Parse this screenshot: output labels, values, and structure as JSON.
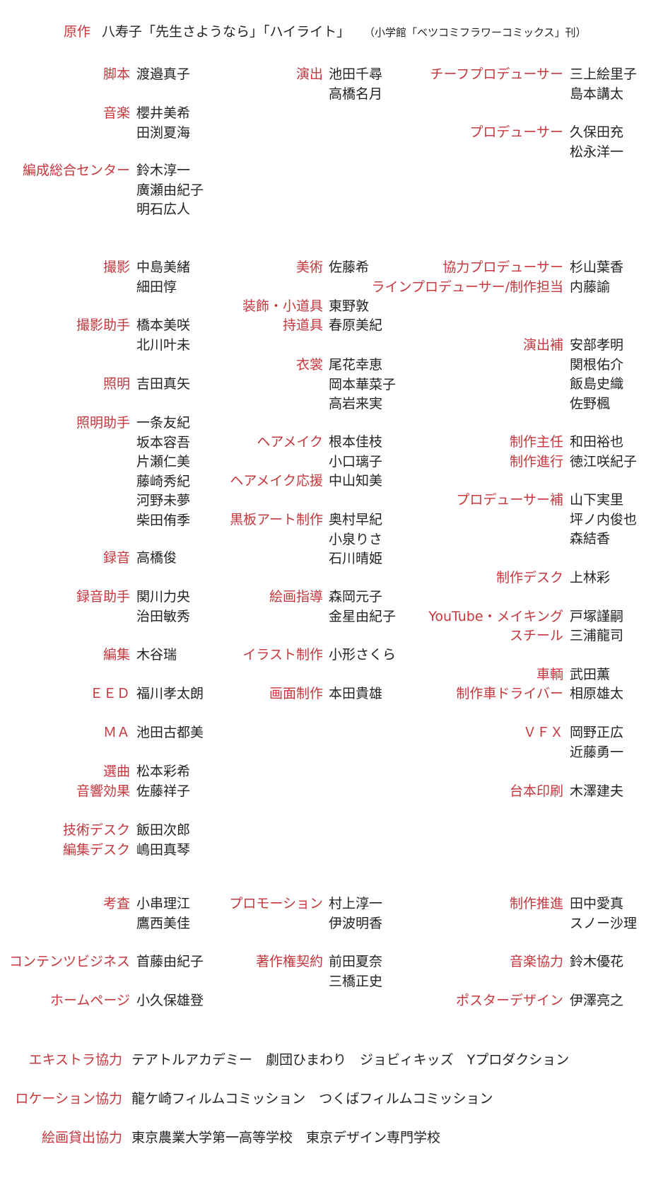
{
  "colors": {
    "role": "#c5373d",
    "name": "#222222",
    "background": "#ffffff"
  },
  "header": {
    "role": "原作",
    "text": "八寿子「先生さようなら」「ハイライト」",
    "note": "（小学館「ベツコミフラワーコミックス」刊）"
  },
  "credits": [
    {
      "role": "脚本",
      "names": [
        "渡邉真子"
      ]
    },
    {
      "role": "音楽",
      "names": [
        "櫻井美希",
        "田渕夏海"
      ]
    },
    {
      "role": "編成総合センター",
      "names": [
        "鈴木淳一",
        "廣瀬由紀子",
        "明石広人"
      ]
    },
    {
      "role": "演出",
      "names": [
        "池田千尋",
        "高橋名月"
      ]
    },
    {
      "role": "チーフプロデューサー",
      "names": [
        "三上絵里子",
        "島本講太"
      ]
    },
    {
      "role": "プロデューサー",
      "names": [
        "久保田充",
        "松永洋一"
      ]
    },
    {
      "role": "撮影",
      "names": [
        "中島美緒",
        "細田惇"
      ]
    },
    {
      "role": "撮影助手",
      "names": [
        "橋本美咲",
        "北川叶未"
      ]
    },
    {
      "role": "照明",
      "names": [
        "吉田真矢"
      ]
    },
    {
      "role": "照明助手",
      "names": [
        "一条友紀",
        "坂本容吾",
        "片瀬仁美",
        "藤崎秀紀",
        "河野未夢",
        "柴田侑季"
      ]
    },
    {
      "role": "録音",
      "names": [
        "高橋俊"
      ]
    },
    {
      "role": "録音助手",
      "names": [
        "関川力央",
        "治田敏秀"
      ]
    },
    {
      "role": "編集",
      "names": [
        "木谷瑞"
      ]
    },
    {
      "role": "ＥＥＤ",
      "names": [
        "福川孝太朗"
      ]
    },
    {
      "role": "ＭＡ",
      "names": [
        "池田古都美"
      ]
    },
    {
      "role": "選曲",
      "names": [
        "松本彩希"
      ]
    },
    {
      "role": "音響効果",
      "names": [
        "佐藤祥子"
      ]
    },
    {
      "role": "技術デスク",
      "names": [
        "飯田次郎"
      ]
    },
    {
      "role": "編集デスク",
      "names": [
        "嶋田真琴"
      ]
    },
    {
      "role": "美術",
      "names": [
        "佐藤希"
      ]
    },
    {
      "role": "装飾・小道具",
      "names": [
        "東野敦"
      ]
    },
    {
      "role": "持道具",
      "names": [
        "春原美紀"
      ]
    },
    {
      "role": "衣裳",
      "names": [
        "尾花幸恵",
        "岡本華菜子",
        "高岩来実"
      ]
    },
    {
      "role": "ヘアメイク",
      "names": [
        "根本佳枝",
        "小口璃子"
      ]
    },
    {
      "role": "ヘアメイク応援",
      "names": [
        "中山知美"
      ]
    },
    {
      "role": "黒板アート制作",
      "names": [
        "奥村早紀",
        "小泉りさ",
        "石川晴姫"
      ]
    },
    {
      "role": "絵画指導",
      "names": [
        "森岡元子",
        "金星由紀子"
      ]
    },
    {
      "role": "イラスト制作",
      "names": [
        "小形さくら"
      ]
    },
    {
      "role": "画面制作",
      "names": [
        "本田貴雄"
      ]
    },
    {
      "role": "協力プロデューサー",
      "names": [
        "杉山葉香"
      ]
    },
    {
      "role": "ラインプロデューサー/制作担当",
      "names": [
        "内藤諭"
      ]
    },
    {
      "role": "演出補",
      "names": [
        "安部孝明",
        "関根佑介",
        "飯島史織",
        "佐野楓"
      ]
    },
    {
      "role": "制作主任",
      "names": [
        "和田裕也"
      ]
    },
    {
      "role": "制作進行",
      "names": [
        "徳江咲紀子"
      ]
    },
    {
      "role": "プロデューサー補",
      "names": [
        "山下実里",
        "坪ノ内俊也",
        "森結香"
      ]
    },
    {
      "role": "制作デスク",
      "names": [
        "上林彩"
      ]
    },
    {
      "role": "YouTube・メイキング",
      "names": [
        "戸塚謹嗣"
      ]
    },
    {
      "role": "スチール",
      "names": [
        "三浦龍司"
      ]
    },
    {
      "role": "車輌",
      "names": [
        "武田薫"
      ]
    },
    {
      "role": "制作車ドライバー",
      "names": [
        "相原雄太"
      ]
    },
    {
      "role": "ＶＦＸ",
      "names": [
        "岡野正広",
        "近藤勇一"
      ]
    },
    {
      "role": "台本印刷",
      "names": [
        "木澤建夫"
      ]
    },
    {
      "role": "考査",
      "names": [
        "小串理江",
        "鷹西美佳"
      ]
    },
    {
      "role": "コンテンツビジネス",
      "names": [
        "首藤由紀子"
      ]
    },
    {
      "role": "ホームページ",
      "names": [
        "小久保雄登"
      ]
    },
    {
      "role": "プロモーション",
      "names": [
        "村上淳一",
        "伊波明香"
      ]
    },
    {
      "role": "著作権契約",
      "names": [
        "前田夏奈",
        "三橋正史"
      ]
    },
    {
      "role": "制作推進",
      "names": [
        "田中愛真",
        "スノー沙理"
      ]
    },
    {
      "role": "音楽協力",
      "names": [
        "鈴木優花"
      ]
    },
    {
      "role": "ポスターデザイン",
      "names": [
        "伊澤亮之"
      ]
    }
  ],
  "cooperation": [
    {
      "role": "エキストラ協力",
      "text": "テアトルアカデミー　劇団ひまわり　ジョビィキッズ　Yプロダクション"
    },
    {
      "role": "ロケーション協力",
      "text": "龍ケ崎フィルムコミッション　つくばフィルムコミッション"
    },
    {
      "role": "絵画貸出協力",
      "text": "東京農業大学第一高等学校　東京デザイン専門学校"
    }
  ]
}
